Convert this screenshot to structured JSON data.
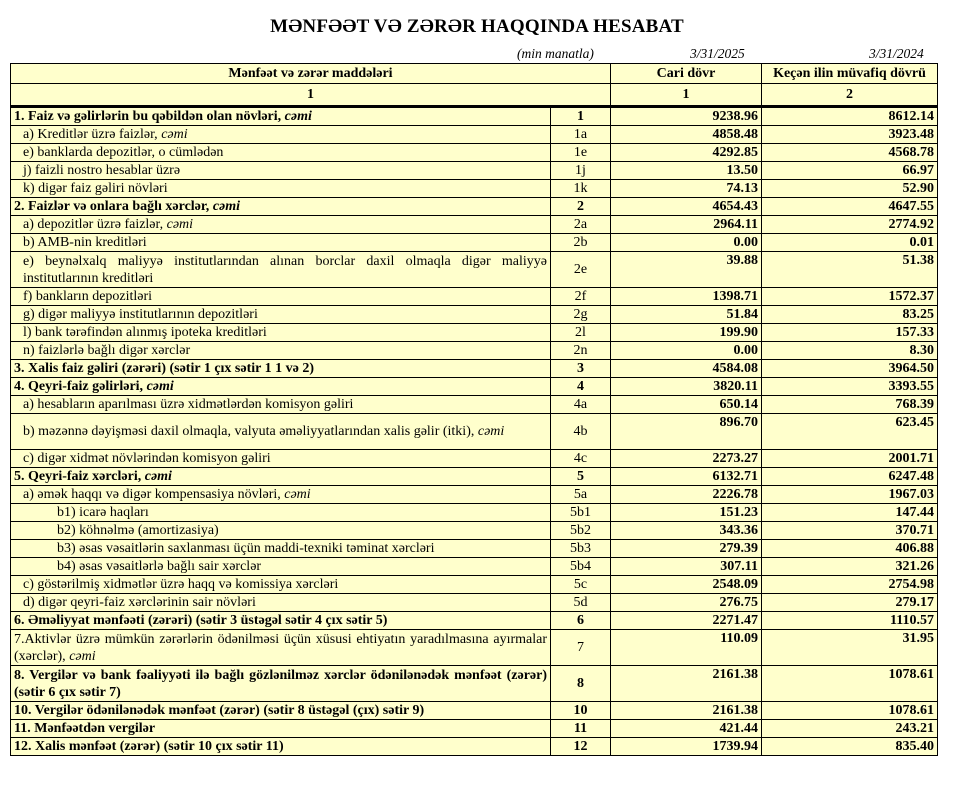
{
  "title": "MƏNFƏƏT VƏ ZƏRƏR HAQQINDA HESABAT",
  "unit_note": "(min manatla)",
  "date_current": "3/31/2025",
  "date_previous": "3/31/2024",
  "header": {
    "items_col": "Mənfəət və zərər maddələri",
    "current_col": "Cari dövr",
    "previous_col": "Keçən ilin müvafiq dövrü",
    "items_num": "1",
    "current_num": "1",
    "previous_num": "2"
  },
  "rows": [
    {
      "label": "1. Faiz və gəlirlərin bu qəbildən olan növləri, ",
      "italic": "cəmi",
      "code": "1",
      "current": "9238.96",
      "previous": "8612.14",
      "bold": true,
      "level": 0
    },
    {
      "label": "a) Kreditlər üzrə faizlər, ",
      "italic": "cəmi",
      "code": "1a",
      "current": "4858.48",
      "previous": "3923.48",
      "level": 1
    },
    {
      "label": "e) banklarda depozitlər, o cümlədən",
      "code": "1e",
      "current": "4292.85",
      "previous": "4568.78",
      "level": 1
    },
    {
      "label": "j) faizli nostro hesablar üzrə",
      "code": "1j",
      "current": "13.50",
      "previous": "66.97",
      "level": 1
    },
    {
      "label": "k) digər faiz gəliri növləri",
      "code": "1k",
      "current": "74.13",
      "previous": "52.90",
      "level": 1
    },
    {
      "label": "2. Faizlər və onlara bağlı xərclər, ",
      "italic": "cəmi",
      "code": "2",
      "current": "4654.43",
      "previous": "4647.55",
      "bold": true,
      "level": 0
    },
    {
      "label": "a) depozitlər üzrə faizlər, ",
      "italic": "cəmi",
      "code": "2a",
      "current": "2964.11",
      "previous": "2774.92",
      "level": 1
    },
    {
      "label": "b) AMB-nin kreditləri",
      "code": "2b",
      "current": "0.00",
      "previous": "0.01",
      "level": 1
    },
    {
      "label": "e) beynəlxalq maliyyə institutlarından alınan borclar daxil olmaqla digər maliyyə institutlarının kreditləri",
      "code": "2e",
      "current": "39.88",
      "previous": "51.38",
      "level": 1,
      "double": true
    },
    {
      "label": "f) bankların depozitləri",
      "code": "2f",
      "current": "1398.71",
      "previous": "1572.37",
      "level": 1
    },
    {
      "label": "g) digər maliyyə institutlarının depozitləri",
      "code": "2g",
      "current": "51.84",
      "previous": "83.25",
      "level": 1
    },
    {
      "label": "l) bank tərəfindən alınmış ipoteka kreditləri",
      "code": "2l",
      "current": "199.90",
      "previous": "157.33",
      "level": 1
    },
    {
      "label": "n) faizlərlə bağlı digər xərclər",
      "code": "2n",
      "current": "0.00",
      "previous": "8.30",
      "level": 1
    },
    {
      "label": "3. Xalis faiz gəliri (zərəri) (sətir 1 çıx sətir 1  1 və 2)",
      "code": "3",
      "current": "4584.08",
      "previous": "3964.50",
      "bold": true,
      "level": 0
    },
    {
      "label": "4. Qeyri-faiz gəlirləri, ",
      "italic": "cəmi",
      "code": "4",
      "current": "3820.11",
      "previous": "3393.55",
      "bold": true,
      "level": 0
    },
    {
      "label": "a) hesabların aparılması üzrə xidmətlərdən komisyon gəliri",
      "code": "4a",
      "current": "650.14",
      "previous": "768.39",
      "level": 1
    },
    {
      "label": "b) məzənnə dəyişməsi daxil olmaqla, valyuta əməliyyatlarından xalis gəlir (itki), ",
      "italic": "cəmi",
      "code": "4b",
      "current": "896.70",
      "previous": "623.45",
      "level": 1,
      "double": true
    },
    {
      "label": "c) digər xidmət növlərindən komisyon gəliri",
      "code": "4c",
      "current": "2273.27",
      "previous": "2001.71",
      "level": 1
    },
    {
      "label": "5. Qeyri-faiz xərcləri, ",
      "italic": "cəmi",
      "code": "5",
      "current": "6132.71",
      "previous": "6247.48",
      "bold": true,
      "level": 0
    },
    {
      "label": "a) əmək haqqı və digər kompensasiya növləri, ",
      "italic": "cəmi",
      "code": "5a",
      "current": "2226.78",
      "previous": "1967.03",
      "level": 1
    },
    {
      "label": "b1) icarə haqları",
      "code": "5b1",
      "current": "151.23",
      "previous": "147.44",
      "level": 2
    },
    {
      "label": "b2) köhnəlmə (amortizasiya)",
      "code": "5b2",
      "current": "343.36",
      "previous": "370.71",
      "level": 2
    },
    {
      "label": "b3) əsas vəsaitlərin saxlanması üçün maddi-texniki təminat xərcləri",
      "code": "5b3",
      "current": "279.39",
      "previous": "406.88",
      "level": 2
    },
    {
      "label": "b4) əsas vəsaitlərlə bağlı sair xərclər",
      "code": "5b4",
      "current": "307.11",
      "previous": "321.26",
      "level": 2
    },
    {
      "label": "c) göstərilmiş xidmətlər üzrə haqq və komissiya xərcləri",
      "code": "5c",
      "current": "2548.09",
      "previous": "2754.98",
      "level": 1
    },
    {
      "label": "d) digər qeyri-faiz xərclərinin sair növləri",
      "code": "5d",
      "current": "276.75",
      "previous": "279.17",
      "level": 1
    },
    {
      "label": "6. Əməliyyat mənfəəti (zərəri) (sətir 3 üstəgəl sətir 4 çıx sətir 5)",
      "code": "6",
      "current": "2271.47",
      "previous": "1110.57",
      "bold": true,
      "level": 0
    },
    {
      "label": "7.Aktivlər üzrə mümkün zərərlərin ödənilməsi üçün xüsusi ehtiyatın yaradılmasına ayırmalar (xərclər), ",
      "italic": "cəmi",
      "code": "7",
      "current": "110.09",
      "previous": "31.95",
      "level": 0,
      "double": true
    },
    {
      "label": "8. Vergilər və bank fəaliyyəti ilə bağlı gözlənilməz xərclər ödənilənədək mənfəət (zərər) (sətir 6 çıx sətir 7)",
      "code": "8",
      "current": "2161.38",
      "previous": "1078.61",
      "bold": true,
      "level": 0,
      "double": true
    },
    {
      "label": "10. Vergilər ödənilənədək mənfəət (zərər) (sətir 8 üstəgəl (çıx) sətir 9)",
      "code": "10",
      "current": "2161.38",
      "previous": "1078.61",
      "bold": true,
      "level": 0
    },
    {
      "label": "11. Mənfəətdən vergilər",
      "code": "11",
      "current": "421.44",
      "previous": "243.21",
      "bold": true,
      "level": 0
    },
    {
      "label": "12. Xalis mənfəət (zərər) (sətir 10 çıx sətir 11)",
      "code": "12",
      "current": "1739.94",
      "previous": "835.40",
      "bold": true,
      "level": 0
    }
  ]
}
